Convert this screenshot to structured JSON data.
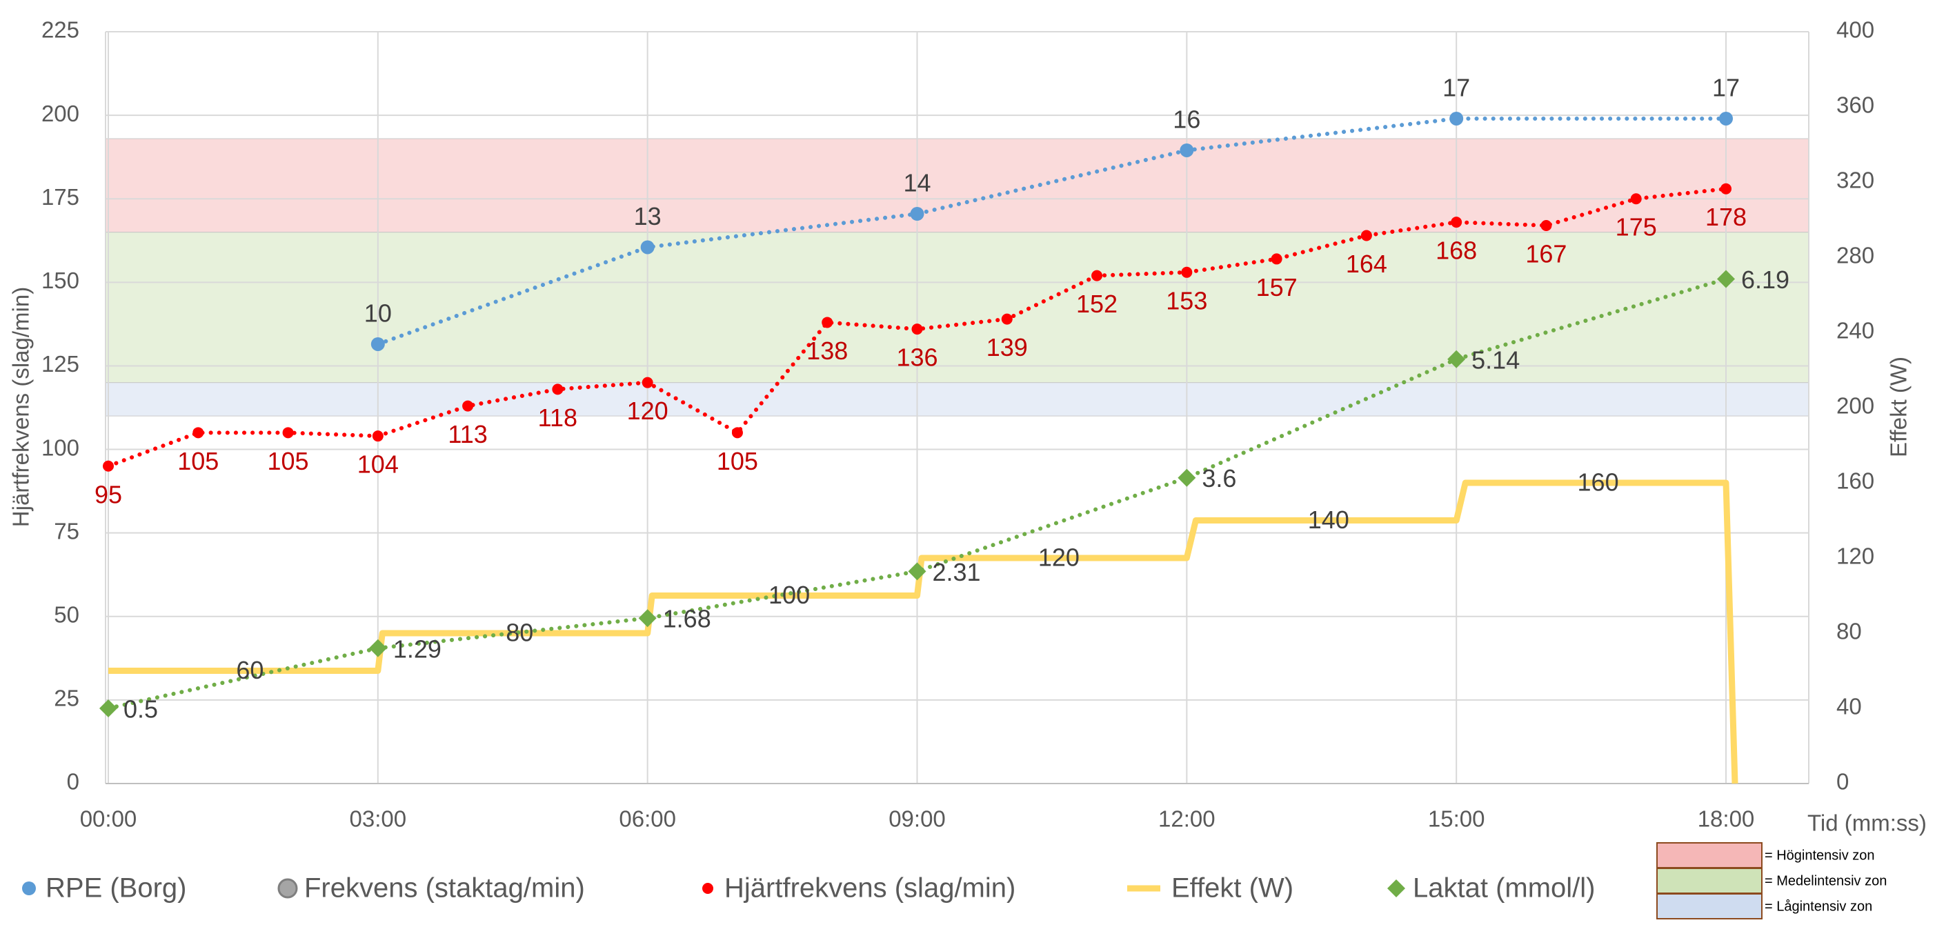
{
  "chart_data": {
    "type": "line",
    "x_labels": [
      "00:00",
      "03:00",
      "06:00",
      "09:00",
      "12:00",
      "15:00",
      "18:00"
    ],
    "x_range_minutes": [
      0,
      19
    ],
    "xlabel": "Tid (mm:ss)",
    "ylabel": "Hjärtfrekvens (slag/min)",
    "y2label": "Effekt (W)",
    "ylim": [
      0,
      225
    ],
    "y_ticks": [
      0,
      25,
      50,
      75,
      100,
      125,
      150,
      175,
      200,
      225
    ],
    "y2lim": [
      0,
      400
    ],
    "y2_ticks": [
      0,
      40,
      80,
      120,
      160,
      200,
      240,
      280,
      320,
      360,
      400
    ],
    "grid": true,
    "zones": [
      {
        "label": "Högintensiv zon",
        "y_from": 165,
        "y_to": 193,
        "color": "#f5b7b7"
      },
      {
        "label": "Medelintensiv zon",
        "y_from": 120,
        "y_to": 165,
        "color": "#cfe3b8"
      },
      {
        "label": "Lågintensiv zon",
        "y_from": 110,
        "y_to": 120,
        "color": "#cfdcf0"
      }
    ],
    "series": [
      {
        "name": "RPE (Borg)",
        "axis": "left",
        "color": "#5b9bd5",
        "style": "dotted-marker",
        "x": [
          3,
          6,
          9,
          12,
          15,
          18
        ],
        "y": [
          131.5,
          160.5,
          170.5,
          189.5,
          199,
          199
        ],
        "labels": [
          "10",
          "13",
          "14",
          "16",
          "17",
          "17"
        ]
      },
      {
        "name": "Frekvens (staktag/min)",
        "axis": "left",
        "color": "#a5a5a5",
        "style": "marker",
        "x": [],
        "y": [],
        "labels": []
      },
      {
        "name": "Hjärtfrekvens (slag/min)",
        "axis": "left",
        "color": "#ff0000",
        "style": "dotted-marker",
        "x": [
          0,
          1,
          2,
          3,
          4,
          5,
          6,
          7,
          8,
          9,
          10,
          11,
          12,
          13,
          14,
          15,
          16,
          17,
          18
        ],
        "y": [
          95,
          105,
          105,
          104,
          113,
          118,
          120,
          105,
          138,
          136,
          139,
          152,
          153,
          157,
          164,
          168,
          167,
          175,
          178
        ],
        "labels": [
          "95",
          "105",
          "105",
          "104",
          "113",
          "118",
          "120",
          "105",
          "138",
          "136",
          "139",
          "152",
          "153",
          "157",
          "164",
          "168",
          "167",
          "175",
          "178"
        ]
      },
      {
        "name": "Effekt (W)",
        "axis": "right",
        "color": "#ffd966",
        "style": "step-line",
        "x": [
          0,
          3,
          3.05,
          6,
          6.05,
          9,
          9.05,
          12,
          12.1,
          15,
          15.1,
          18,
          18.1
        ],
        "y": [
          60,
          60,
          80,
          80,
          100,
          100,
          120,
          120,
          140,
          140,
          160,
          160,
          0
        ],
        "labels": [
          "60",
          "80",
          "100",
          "120",
          "140",
          "160"
        ]
      },
      {
        "name": "Laktat (mmol/l)",
        "axis": "left",
        "color": "#70ad47",
        "style": "dotted-diamond",
        "x": [
          0,
          3,
          6,
          9,
          12,
          15,
          18
        ],
        "y": [
          22.5,
          40.5,
          49.5,
          63.5,
          91.5,
          127,
          151
        ],
        "labels": [
          "0.5",
          "1.29",
          "1.68",
          "2.31",
          "3.6",
          "5.14",
          "6.19"
        ]
      }
    ]
  }
}
